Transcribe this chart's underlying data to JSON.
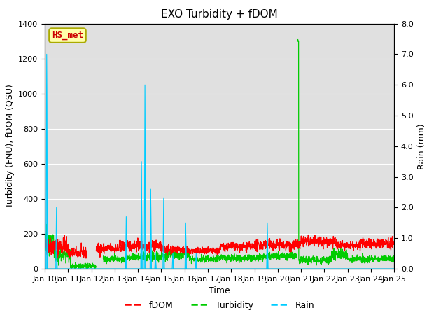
{
  "title": "EXO Turbidity + fDOM",
  "xlabel": "Time",
  "ylabel_left": "Turbidity (FNU), fDOM (QSU)",
  "ylabel_right": "Rain (mm)",
  "ylim_left": [
    0,
    1400
  ],
  "ylim_right": [
    0.0,
    8.0
  ],
  "yticks_left": [
    0,
    200,
    400,
    600,
    800,
    1000,
    1200,
    1400
  ],
  "yticks_right_vals": [
    0.0,
    1.0,
    2.0,
    3.0,
    4.0,
    5.0,
    6.0,
    7.0,
    8.0
  ],
  "yticks_right_labels": [
    "0.0",
    "1.0",
    "2.0",
    "3.0",
    "4.0",
    "5.0",
    "6.0",
    "7.0",
    "8.0"
  ],
  "xtick_labels": [
    "Jan 10",
    "Jan 11",
    "Jan 12",
    "Jan 13",
    "Jan 14",
    "Jan 15",
    "Jan 16",
    "Jan 17",
    "Jan 18",
    "Jan 19",
    "Jan 20",
    "Jan 21",
    "Jan 22",
    "Jan 23",
    "Jan 24",
    "Jan 25"
  ],
  "xlim": [
    0,
    15
  ],
  "annotation_text": "HS_met",
  "fdom_color": "#ff0000",
  "turbidity_color": "#00cc00",
  "rain_color": "#00ccff",
  "bg_color": "#e0e0e0",
  "title_fontsize": 11,
  "rain_events_mm": [
    [
      0.08,
      7.0
    ],
    [
      0.5,
      2.0
    ],
    [
      3.5,
      1.7
    ],
    [
      4.15,
      3.5
    ],
    [
      4.3,
      6.0
    ],
    [
      4.55,
      2.6
    ],
    [
      4.75,
      0.5
    ],
    [
      5.1,
      2.3
    ],
    [
      5.5,
      0.5
    ],
    [
      6.05,
      1.5
    ],
    [
      6.5,
      0.5
    ],
    [
      9.55,
      1.5
    ]
  ],
  "fdom_segments": [
    {
      "t_start": 0.0,
      "t_end": 1.0,
      "base": 130,
      "noise": 25
    },
    {
      "t_start": 1.0,
      "t_end": 1.8,
      "base": 90,
      "noise": 15
    },
    {
      "t_start": 2.2,
      "t_end": 3.2,
      "base": 115,
      "noise": 15
    },
    {
      "t_start": 3.2,
      "t_end": 5.0,
      "base": 130,
      "noise": 15
    },
    {
      "t_start": 5.0,
      "t_end": 6.0,
      "base": 110,
      "noise": 12
    },
    {
      "t_start": 6.0,
      "t_end": 7.5,
      "base": 100,
      "noise": 10
    },
    {
      "t_start": 7.5,
      "t_end": 9.0,
      "base": 125,
      "noise": 12
    },
    {
      "t_start": 9.0,
      "t_end": 11.0,
      "base": 135,
      "noise": 15
    },
    {
      "t_start": 11.0,
      "t_end": 12.5,
      "base": 155,
      "noise": 15
    },
    {
      "t_start": 12.5,
      "t_end": 13.5,
      "base": 130,
      "noise": 12
    },
    {
      "t_start": 13.5,
      "t_end": 15.0,
      "base": 145,
      "noise": 15
    }
  ],
  "turbidity_segments": [
    {
      "t_start": 0.0,
      "t_end": 0.4,
      "base": 160,
      "noise": 30
    },
    {
      "t_start": 0.4,
      "t_end": 1.1,
      "base": 80,
      "noise": 20
    },
    {
      "t_start": 1.1,
      "t_end": 2.2,
      "base": 15,
      "noise": 8
    },
    {
      "t_start": 2.5,
      "t_end": 3.5,
      "base": 55,
      "noise": 10
    },
    {
      "t_start": 3.5,
      "t_end": 5.2,
      "base": 68,
      "noise": 12
    },
    {
      "t_start": 5.2,
      "t_end": 6.2,
      "base": 80,
      "noise": 15
    },
    {
      "t_start": 6.2,
      "t_end": 7.2,
      "base": 55,
      "noise": 10
    },
    {
      "t_start": 7.2,
      "t_end": 9.2,
      "base": 62,
      "noise": 10
    },
    {
      "t_start": 9.2,
      "t_end": 10.8,
      "base": 72,
      "noise": 10
    },
    {
      "t_start": 10.85,
      "t_end": 10.9,
      "base": 1300,
      "noise": 5
    },
    {
      "t_start": 10.9,
      "t_end": 12.3,
      "base": 50,
      "noise": 10
    },
    {
      "t_start": 12.3,
      "t_end": 13.0,
      "base": 80,
      "noise": 15
    },
    {
      "t_start": 13.0,
      "t_end": 14.0,
      "base": 55,
      "noise": 10
    },
    {
      "t_start": 14.0,
      "t_end": 15.0,
      "base": 60,
      "noise": 10
    }
  ]
}
